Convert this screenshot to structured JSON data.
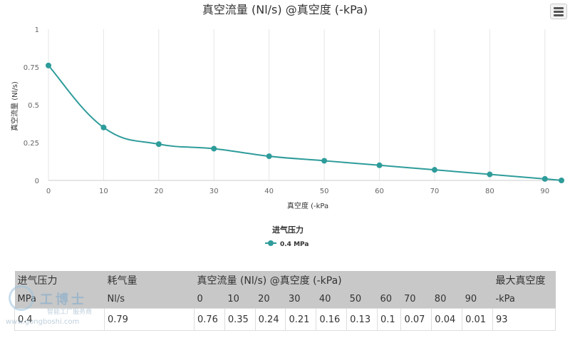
{
  "chart_data": {
    "type": "line",
    "title": "真空流量 (Nl/s) @真空度 (-kPa)",
    "xlabel": "真空度 (-kPa",
    "ylabel": "真空流量 (Nl/s)",
    "x": [
      0,
      10,
      20,
      30,
      40,
      50,
      60,
      70,
      80,
      90,
      93
    ],
    "xlim": [
      0,
      93
    ],
    "ylim": [
      0,
      1
    ],
    "x_ticks": [
      0,
      10,
      20,
      30,
      40,
      50,
      60,
      70,
      80,
      90
    ],
    "y_ticks": [
      0,
      0.25,
      0.5,
      0.75,
      1
    ],
    "x_tick_labels": [
      "0",
      "10",
      "20",
      "30",
      "40",
      "50",
      "60",
      "70",
      "80",
      "90"
    ],
    "y_tick_labels": [
      "0",
      "0.25",
      "0.5",
      "0.75",
      "1"
    ],
    "grid": "vertical",
    "legend_title": "进气压力",
    "legend_position": "bottom-center",
    "series": [
      {
        "name": "0.4 MPa",
        "color": "#2e9c9a",
        "values": [
          0.76,
          0.35,
          0.24,
          0.21,
          0.16,
          0.13,
          0.1,
          0.07,
          0.04,
          0.01,
          0
        ]
      }
    ]
  },
  "menu_icon": "hamburger-menu-icon",
  "table": {
    "header1": {
      "pressure": "进气压力",
      "consumption": "耗气量",
      "flow": "真空流量 (Nl/s) @真空度 (-kPa)",
      "max_vacuum": "最大真空度"
    },
    "header2": {
      "pressure_unit": "MPa",
      "consumption_unit": "Nl/s",
      "vacuum_levels": [
        "0",
        "10",
        "20",
        "30",
        "40",
        "50",
        "60",
        "70",
        "80",
        "90"
      ],
      "max_vacuum_unit": "-kPa"
    },
    "row": {
      "pressure": "0.4",
      "consumption": "0.79",
      "flows": [
        "0.76",
        "0.35",
        "0.24",
        "0.21",
        "0.16",
        "0.13",
        "0.1",
        "0.07",
        "0.04",
        "0.01"
      ],
      "max_vacuum": "93"
    }
  },
  "watermark": {
    "name": "工博士",
    "subtitle": "智能工厂服务商",
    "url": "www.gongboshi.com"
  }
}
